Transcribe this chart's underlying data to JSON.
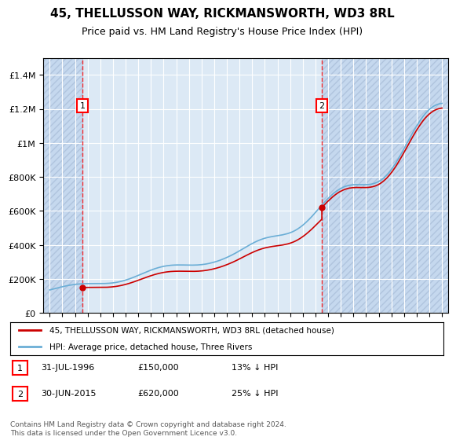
{
  "title": "45, THELLUSSON WAY, RICKMANSWORTH, WD3 8RL",
  "subtitle": "Price paid vs. HM Land Registry's House Price Index (HPI)",
  "legend_line1": "45, THELLUSSON WAY, RICKMANSWORTH, WD3 8RL (detached house)",
  "legend_line2": "HPI: Average price, detached house, Three Rivers",
  "annotation1_date": "31-JUL-1996",
  "annotation1_price": "£150,000",
  "annotation1_hpi": "13% ↓ HPI",
  "annotation2_date": "30-JUN-2015",
  "annotation2_price": "£620,000",
  "annotation2_hpi": "25% ↓ HPI",
  "footnote": "Contains HM Land Registry data © Crown copyright and database right 2024.\nThis data is licensed under the Open Government Licence v3.0.",
  "sale1_x": 1996.583,
  "sale1_y": 150000,
  "sale2_x": 2015.5,
  "sale2_y": 620000,
  "hpi_color": "#6baed6",
  "property_color": "#cc0000",
  "background_color": "#dce9f5",
  "hatch_color": "#b0c4de",
  "ylim": [
    0,
    1500000
  ],
  "xlim_start": 1993.5,
  "xlim_end": 2025.5
}
